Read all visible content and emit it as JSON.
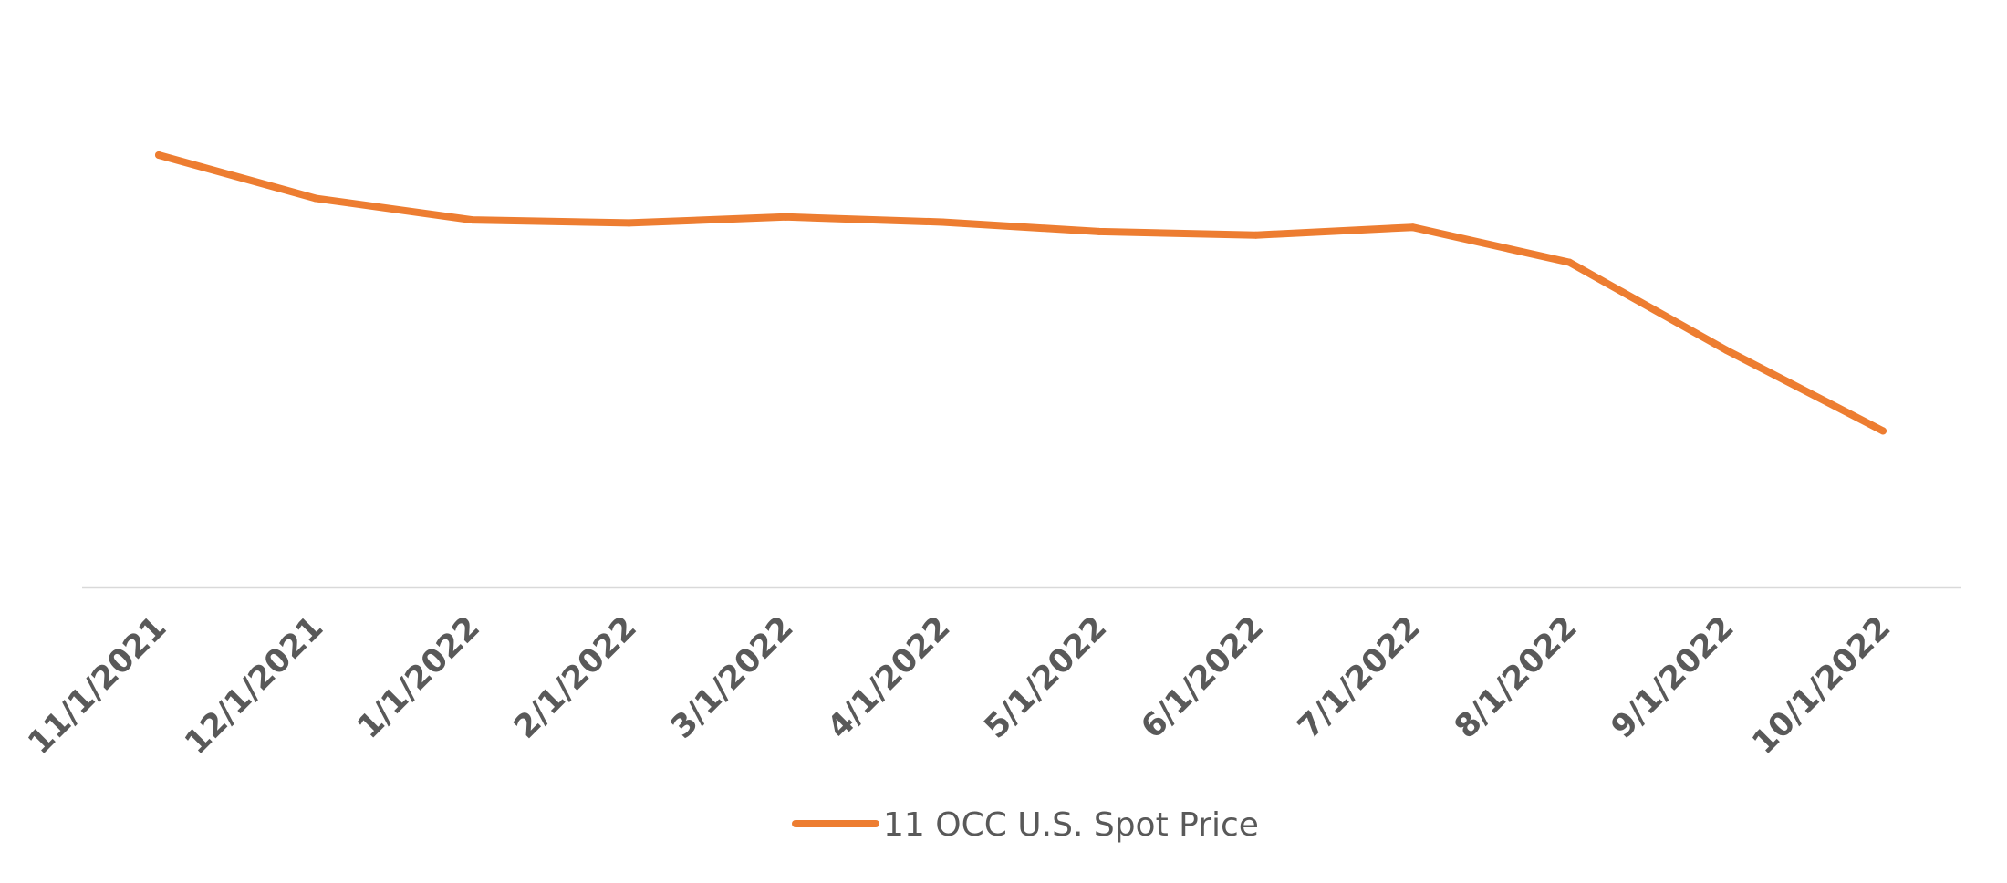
{
  "chart_data": {
    "type": "line",
    "title": "",
    "xlabel": "",
    "ylabel": "",
    "categories": [
      "11/1/2021",
      "12/1/2021",
      "1/1/2022",
      "2/1/2022",
      "3/1/2022",
      "4/1/2022",
      "5/1/2022",
      "6/1/2022",
      "7/1/2022",
      "8/1/2022",
      "9/1/2022",
      "10/1/2022"
    ],
    "series": [
      {
        "name": "11 OCC U.S. Spot Price",
        "color": "#ED7D31",
        "values": [
          100,
          90,
          85,
          84.3,
          85.7,
          84.5,
          82.3,
          81.5,
          83.3,
          75.2,
          54.9,
          36.2
        ]
      }
    ],
    "ylim": [
      0,
      100
    ],
    "y_axis_visible": false,
    "grid": false,
    "legend": "bottom"
  }
}
